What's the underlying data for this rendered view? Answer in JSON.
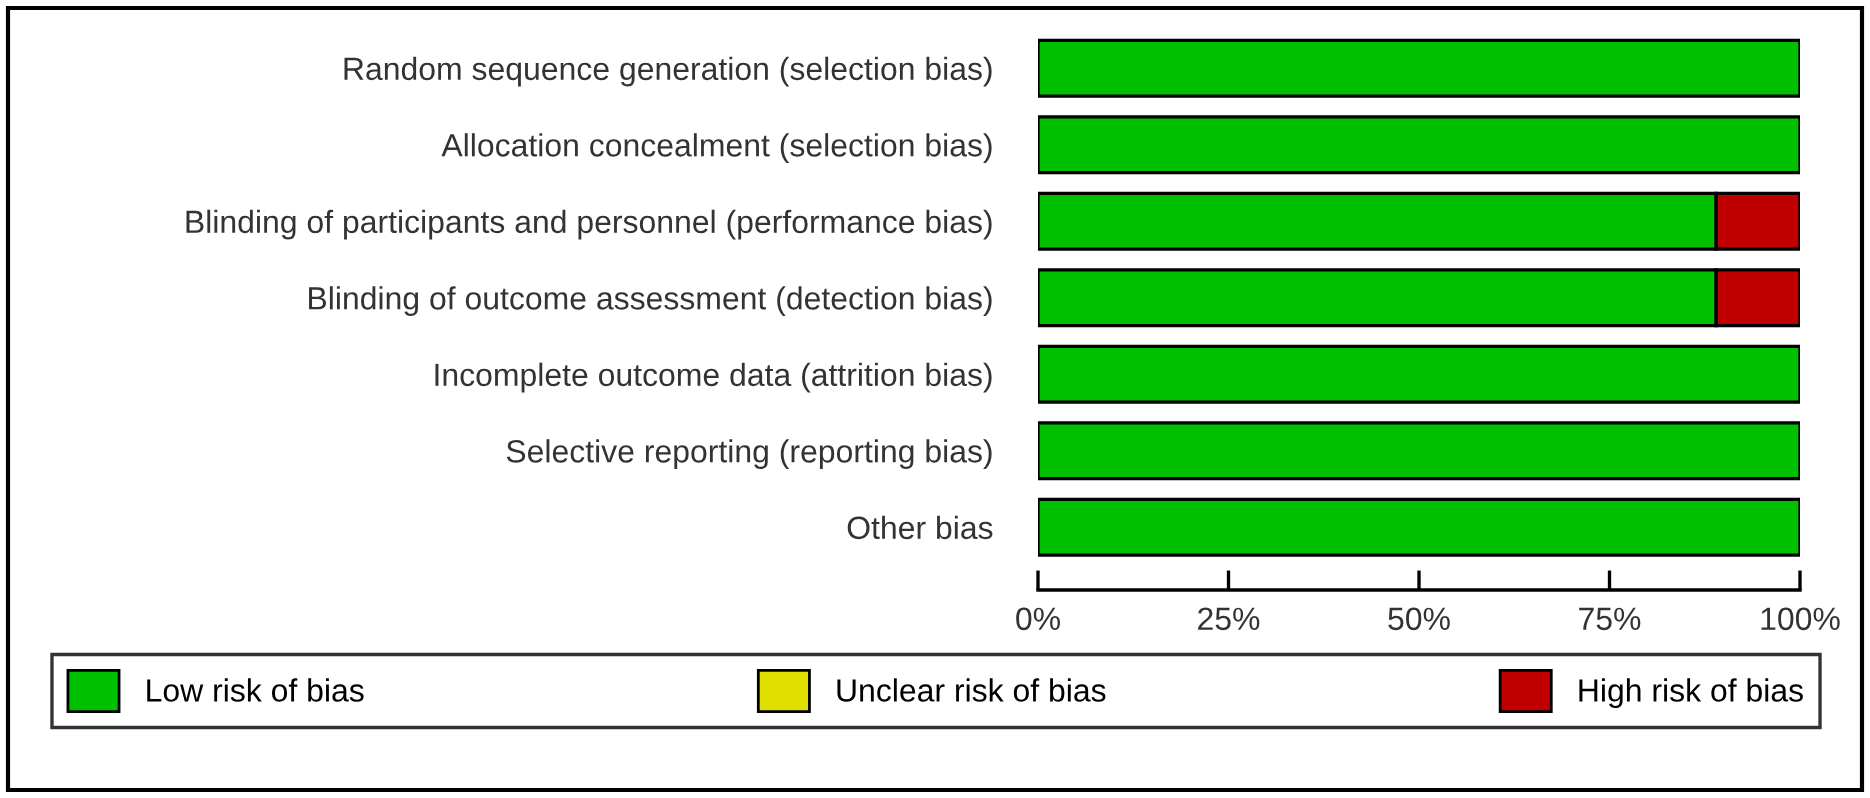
{
  "chart_data": {
    "type": "bar",
    "orientation": "horizontal",
    "stacked": true,
    "categories": [
      "Random sequence generation (selection bias)",
      "Allocation concealment (selection bias)",
      "Blinding of participants and personnel (performance bias)",
      "Blinding of outcome assessment (detection bias)",
      "Incomplete outcome data (attrition bias)",
      "Selective reporting (reporting bias)",
      "Other bias"
    ],
    "series": [
      {
        "name": "Low risk of bias",
        "color": "#00c000",
        "values": [
          100,
          100,
          89,
          89,
          100,
          100,
          100
        ]
      },
      {
        "name": "Unclear risk of bias",
        "color": "#e0e000",
        "values": [
          0,
          0,
          0,
          0,
          0,
          0,
          0
        ]
      },
      {
        "name": "High risk of bias",
        "color": "#c00000",
        "values": [
          0,
          0,
          11,
          11,
          0,
          0,
          0
        ]
      }
    ],
    "xlim": [
      0,
      100
    ],
    "xticks": [
      {
        "value": 0,
        "label": "0%"
      },
      {
        "value": 25,
        "label": "25%"
      },
      {
        "value": 50,
        "label": "50%"
      },
      {
        "value": 75,
        "label": "75%"
      },
      {
        "value": 100,
        "label": "100%"
      }
    ],
    "grid": false,
    "legend": "bottom"
  }
}
